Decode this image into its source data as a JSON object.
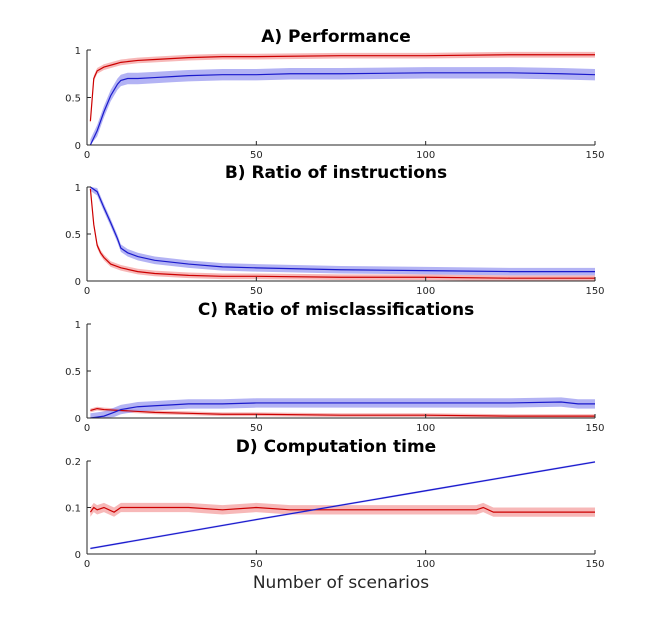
{
  "figure": {
    "xlabel": "Number of scenarios"
  },
  "colors": {
    "red_line": "#cc0000",
    "red_band": "#f4a0a0",
    "blue_line": "#1a1acc",
    "blue_band": "#9a9af0"
  },
  "chart_data": [
    {
      "type": "line",
      "title": "A) Performance",
      "xlabel": "",
      "ylabel": "",
      "xlim": [
        0,
        150
      ],
      "ylim": [
        0,
        1
      ],
      "xticks": [
        "0",
        "50",
        "100",
        "150"
      ],
      "yticks": [
        "0",
        "0.5",
        "1"
      ],
      "series": [
        {
          "color": "red",
          "x": [
            1,
            2,
            3,
            5,
            8,
            10,
            15,
            20,
            30,
            40,
            50,
            75,
            100,
            125,
            150
          ],
          "y": [
            0.25,
            0.7,
            0.78,
            0.82,
            0.85,
            0.87,
            0.89,
            0.9,
            0.92,
            0.93,
            0.93,
            0.94,
            0.94,
            0.95,
            0.95
          ],
          "band": 0.03
        },
        {
          "color": "blue",
          "x": [
            1,
            3,
            5,
            7,
            9,
            10,
            12,
            15,
            20,
            25,
            30,
            40,
            50,
            60,
            75,
            100,
            125,
            140,
            150
          ],
          "y": [
            0.0,
            0.15,
            0.35,
            0.52,
            0.64,
            0.68,
            0.7,
            0.7,
            0.71,
            0.72,
            0.73,
            0.74,
            0.74,
            0.75,
            0.75,
            0.76,
            0.76,
            0.75,
            0.74
          ],
          "band": 0.06
        }
      ]
    },
    {
      "type": "line",
      "title": "B) Ratio of instructions",
      "xlabel": "",
      "ylabel": "",
      "xlim": [
        0,
        150
      ],
      "ylim": [
        0,
        1
      ],
      "xticks": [
        "0",
        "50",
        "100",
        "150"
      ],
      "yticks": [
        "0",
        "0.5",
        "1"
      ],
      "series": [
        {
          "color": "red",
          "x": [
            1,
            2,
            3,
            4,
            5,
            7,
            10,
            15,
            20,
            30,
            40,
            50,
            75,
            100,
            125,
            150
          ],
          "y": [
            0.98,
            0.6,
            0.38,
            0.3,
            0.25,
            0.18,
            0.14,
            0.1,
            0.08,
            0.06,
            0.05,
            0.05,
            0.04,
            0.04,
            0.03,
            0.03
          ],
          "band": 0.03
        },
        {
          "color": "blue",
          "x": [
            1,
            3,
            5,
            7,
            9,
            10,
            12,
            15,
            20,
            30,
            40,
            50,
            75,
            100,
            125,
            150
          ],
          "y": [
            1.0,
            0.95,
            0.78,
            0.62,
            0.45,
            0.35,
            0.3,
            0.26,
            0.22,
            0.18,
            0.15,
            0.14,
            0.12,
            0.11,
            0.1,
            0.1
          ],
          "band": 0.04
        }
      ]
    },
    {
      "type": "line",
      "title": "C) Ratio of misclassifications",
      "xlabel": "",
      "ylabel": "",
      "xlim": [
        0,
        150
      ],
      "ylim": [
        0,
        1
      ],
      "xticks": [
        "0",
        "50",
        "100",
        "150"
      ],
      "yticks": [
        "0",
        "0.5",
        "1"
      ],
      "series": [
        {
          "color": "red",
          "x": [
            1,
            3,
            5,
            10,
            15,
            20,
            30,
            40,
            50,
            75,
            100,
            125,
            150
          ],
          "y": [
            0.08,
            0.1,
            0.09,
            0.08,
            0.07,
            0.06,
            0.05,
            0.04,
            0.04,
            0.03,
            0.03,
            0.02,
            0.02
          ],
          "band": 0.02
        },
        {
          "color": "blue",
          "x": [
            1,
            3,
            5,
            8,
            10,
            15,
            20,
            25,
            30,
            40,
            50,
            75,
            100,
            125,
            140,
            145,
            150
          ],
          "y": [
            0.0,
            0.01,
            0.02,
            0.06,
            0.09,
            0.12,
            0.13,
            0.14,
            0.15,
            0.15,
            0.16,
            0.16,
            0.16,
            0.16,
            0.17,
            0.15,
            0.15
          ],
          "band": 0.05
        }
      ]
    },
    {
      "type": "line",
      "title": "D) Computation time",
      "xlabel": "Number of scenarios",
      "ylabel": "",
      "xlim": [
        0,
        150
      ],
      "ylim": [
        0,
        0.2
      ],
      "xticks": [
        "0",
        "50",
        "100",
        "150"
      ],
      "yticks": [
        "0",
        "0.1",
        "0.2"
      ],
      "series": [
        {
          "color": "red",
          "x": [
            1,
            2,
            3,
            5,
            8,
            10,
            15,
            20,
            30,
            40,
            50,
            60,
            75,
            100,
            115,
            117,
            120,
            130,
            140,
            150
          ],
          "y": [
            0.09,
            0.1,
            0.095,
            0.1,
            0.09,
            0.1,
            0.1,
            0.1,
            0.1,
            0.095,
            0.1,
            0.095,
            0.095,
            0.095,
            0.095,
            0.1,
            0.09,
            0.09,
            0.09,
            0.09
          ],
          "band": 0.01
        },
        {
          "color": "blue",
          "x": [
            1,
            50,
            100,
            150
          ],
          "y": [
            0.012,
            0.074,
            0.136,
            0.198
          ],
          "band": 0.002
        }
      ]
    }
  ]
}
